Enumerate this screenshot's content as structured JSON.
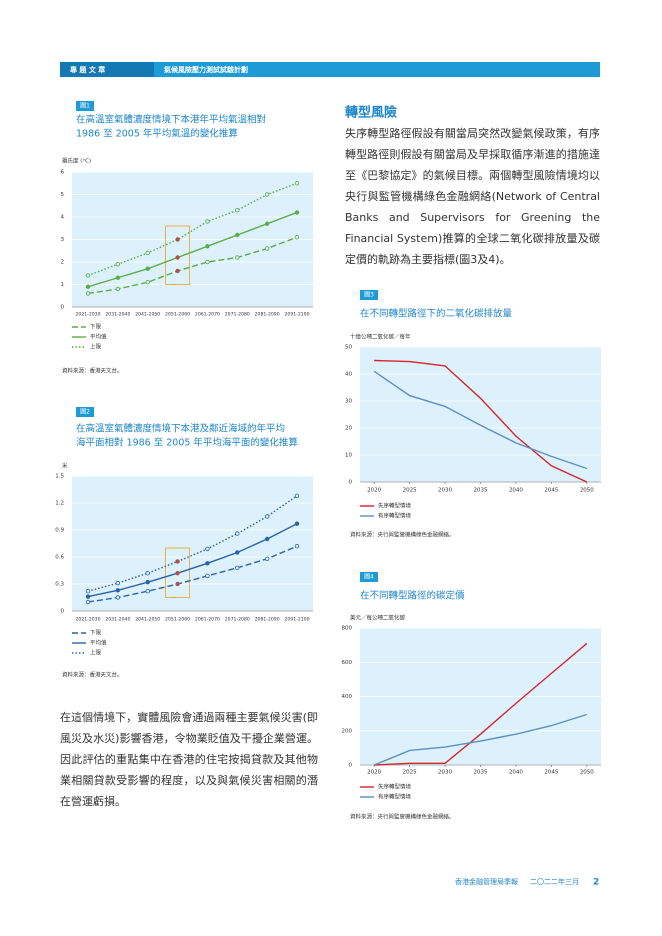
{
  "header": {
    "section": "專 題 文 章",
    "topic": "氣候風險壓力測試試驗計劃"
  },
  "chart_data": [
    {
      "type": "line",
      "label": "圖1",
      "title": [
        "在高溫室氣體濃度情境下本港年平均氣溫相對",
        "1986 至 2005 年平均氣溫的變化推算"
      ],
      "ylabel": "攝氏度 (°C)",
      "categories": [
        "2021-2030",
        "2031-2040",
        "2041-2050",
        "2051-2060",
        "2061-2070",
        "2071-2080",
        "2081-2090",
        "2091-2100"
      ],
      "series": [
        {
          "name": "下限",
          "color": "#5aac44",
          "style": "dashed",
          "marker": "hollow",
          "values": [
            0.6,
            0.8,
            1.1,
            1.6,
            2.0,
            2.2,
            2.6,
            3.1
          ]
        },
        {
          "name": "平均值",
          "color": "#5aac44",
          "style": "solid",
          "marker": "filled",
          "values": [
            0.9,
            1.3,
            1.7,
            2.2,
            2.7,
            3.2,
            3.7,
            4.2
          ]
        },
        {
          "name": "上限",
          "color": "#5aac44",
          "style": "dotted",
          "marker": "hollow",
          "values": [
            1.4,
            1.9,
            2.4,
            3.0,
            3.8,
            4.3,
            5.0,
            5.5
          ]
        }
      ],
      "ylim": [
        0,
        6
      ],
      "yticks": [
        0,
        1,
        2,
        3,
        4,
        5,
        6
      ],
      "grid": true,
      "source": "資料來源：香港天文台。"
    },
    {
      "type": "line",
      "label": "圖2",
      "title": [
        "在高溫室氣體濃度情境下本港及鄰近海域的年平均",
        "海平面相對 1986 至 2005 年平均海平面的變化推算"
      ],
      "ylabel": "米",
      "categories": [
        "2021-2030",
        "2031-2040",
        "2041-2050",
        "2051-2060",
        "2061-2070",
        "2071-2080",
        "2081-2090",
        "2091-2100"
      ],
      "series": [
        {
          "name": "下限",
          "color": "#2a63a8",
          "style": "dashed",
          "marker": "hollow",
          "values": [
            0.1,
            0.15,
            0.22,
            0.3,
            0.39,
            0.48,
            0.58,
            0.72
          ]
        },
        {
          "name": "平均值",
          "color": "#2a63a8",
          "style": "solid",
          "marker": "filled",
          "values": [
            0.16,
            0.23,
            0.32,
            0.42,
            0.53,
            0.65,
            0.8,
            0.97
          ]
        },
        {
          "name": "上限",
          "color": "#2a63a8",
          "style": "dotted",
          "marker": "hollow",
          "values": [
            0.22,
            0.31,
            0.42,
            0.55,
            0.69,
            0.86,
            1.05,
            1.28
          ]
        }
      ],
      "ylim": [
        0,
        1.5
      ],
      "yticks": [
        0,
        0.3,
        0.6,
        0.9,
        1.2,
        1.5
      ],
      "grid": true,
      "source": "資料來源：香港天文台。"
    },
    {
      "type": "line",
      "label": "圖3",
      "title": [
        "在不同轉型路徑下的二氧化碳排放量"
      ],
      "ylabel": "十億公噸二氧化碳／每年",
      "x": [
        2020,
        2025,
        2030,
        2035,
        2040,
        2045,
        2050
      ],
      "series": [
        {
          "name": "失序轉型情境",
          "color": "#d7262b",
          "style": "solid",
          "values": [
            45,
            44.6,
            43,
            31,
            17,
            6,
            0
          ]
        },
        {
          "name": "有序轉型情境",
          "color": "#5b8fc6",
          "style": "solid",
          "values": [
            41,
            32,
            28,
            21,
            14.5,
            9.5,
            5
          ]
        }
      ],
      "xlim": [
        2018,
        2052
      ],
      "xticks": [
        2020,
        2025,
        2030,
        2035,
        2040,
        2045,
        2050
      ],
      "ylim": [
        0,
        50
      ],
      "yticks": [
        0,
        10,
        20,
        30,
        40,
        50
      ],
      "grid": true,
      "source": "資料來源：央行與監管機構綠色金融網絡。"
    },
    {
      "type": "line",
      "label": "圖4",
      "title": [
        "在不同轉型路徑的碳定價"
      ],
      "ylabel": "美元／每公噸二氧化碳",
      "x": [
        2020,
        2025,
        2030,
        2035,
        2040,
        2045,
        2050
      ],
      "series": [
        {
          "name": "失序轉型情境",
          "color": "#d7262b",
          "style": "solid",
          "values": [
            0,
            10,
            10,
            180,
            360,
            535,
            710
          ]
        },
        {
          "name": "有序轉型情境",
          "color": "#5b8fc6",
          "style": "solid",
          "values": [
            0,
            85,
            105,
            140,
            180,
            230,
            295
          ]
        }
      ],
      "xlim": [
        2018,
        2052
      ],
      "xticks": [
        2020,
        2025,
        2030,
        2035,
        2040,
        2045,
        2050
      ],
      "ylim": [
        0,
        800
      ],
      "yticks": [
        0,
        200,
        400,
        600,
        800
      ],
      "grid": true,
      "source": "資料來源：央行與監管機構綠色金融網絡。"
    }
  ],
  "text": {
    "left_paragraph": "在這個情境下，實體風險會通過兩種主要氣候災害(即風災及水災)影響香港，令物業貶值及干擾企業營運。因此評估的重點集中在香港的住宅按揭貸款及其他物業相關貸款受影響的程度，以及與氣候災害相關的潛在營運虧損。",
    "heading": "轉型風險",
    "right_paragraph": "失序轉型路徑假設有關當局突然改變氣候政策，有序轉型路徑則假設有關當局及早採取循序漸進的措施達至《巴黎協定》的氣候目標。兩個轉型風險情境均以央行與監管機構綠色金融網絡(Network of Central Banks and Supervisors for Greening the Financial System)推算的全球二氧化碳排放量及碳定價的軌跡為主要指標(圖3及4)。"
  },
  "footer": {
    "publication": "香港金融管理局季報",
    "date": "二〇二二年三月",
    "page": 2
  }
}
